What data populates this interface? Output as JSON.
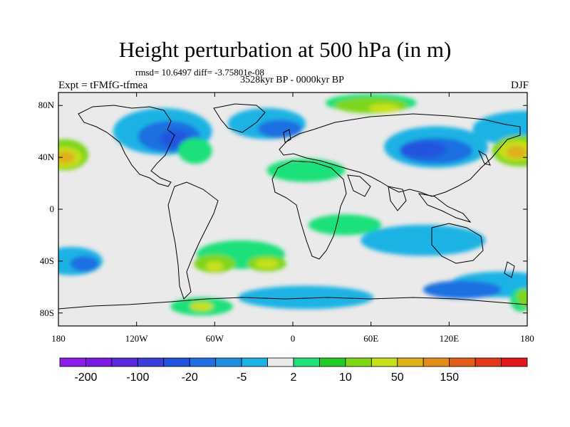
{
  "title": "Height perturbation at 500 hPa (in m)",
  "stats_text": "rmsd= 10.6497 diff= -3.75801e-08",
  "experiment_label": "Expt = tFMfG-tfmea",
  "period_label": "3528kyr BP - 0000kyr BP",
  "season_label": "DJF",
  "chart_data": {
    "type": "heatmap",
    "title": "Height perturbation at 500 hPa (in m)",
    "xlim": [
      -180,
      180
    ],
    "ylim": [
      -90,
      90
    ],
    "x_ticks": [
      {
        "value": -180,
        "label": "180"
      },
      {
        "value": -120,
        "label": "120W"
      },
      {
        "value": -60,
        "label": "60W"
      },
      {
        "value": 0,
        "label": "0"
      },
      {
        "value": 60,
        "label": "60E"
      },
      {
        "value": 120,
        "label": "120E"
      },
      {
        "value": 180,
        "label": "180"
      }
    ],
    "y_ticks": [
      {
        "value": 80,
        "label": "80N"
      },
      {
        "value": 40,
        "label": "40N"
      },
      {
        "value": 0,
        "label": "0"
      },
      {
        "value": -40,
        "label": "40S"
      },
      {
        "value": -80,
        "label": "80S"
      }
    ],
    "colorbar": {
      "colors": [
        "#8c1ee6",
        "#7a1be0",
        "#5a2bd9",
        "#3b3fd8",
        "#2255dd",
        "#1f6fe1",
        "#1f8fe4",
        "#1fb2e4",
        "#eaeaea",
        "#1fe07a",
        "#22cc22",
        "#7ed61a",
        "#c6e01a",
        "#ddb21a",
        "#e38c1a",
        "#e0601a",
        "#e03a1a",
        "#e01a1a"
      ],
      "labels": [
        {
          "index": 1,
          "text": "-200"
        },
        {
          "index": 3,
          "text": "-100"
        },
        {
          "index": 5,
          "text": "-20"
        },
        {
          "index": 7,
          "text": "-5"
        },
        {
          "index": 9,
          "text": "2"
        },
        {
          "index": 11,
          "text": "10"
        },
        {
          "index": 13,
          "text": "50"
        },
        {
          "index": 15,
          "text": "150"
        }
      ]
    },
    "fields": [
      {
        "level": -5,
        "color": "#1fb2e4",
        "lon": 180,
        "lat": 62,
        "rx": 4200,
        "ry": 1400
      },
      {
        "level": -5,
        "color": "#1fb2e4",
        "lon": 110,
        "lat": 48,
        "rx": 4000,
        "ry": 1600
      },
      {
        "level": -5,
        "color": "#1fb2e4",
        "lon": -100,
        "lat": 60,
        "rx": 3800,
        "ry": 1800
      },
      {
        "level": -5,
        "color": "#1fb2e4",
        "lon": -20,
        "lat": 66,
        "rx": 3000,
        "ry": 1200
      },
      {
        "level": -5,
        "color": "#1fb2e4",
        "lon": 100,
        "lat": -24,
        "rx": 4800,
        "ry": 1200
      },
      {
        "level": -5,
        "color": "#1fb2e4",
        "lon": -170,
        "lat": -40,
        "rx": 2400,
        "ry": 1100
      },
      {
        "level": -5,
        "color": "#1fb2e4",
        "lon": 160,
        "lat": -58,
        "rx": 4000,
        "ry": 1000
      },
      {
        "level": -5,
        "color": "#1fb2e4",
        "lon": 10,
        "lat": -68,
        "rx": 5200,
        "ry": 900
      },
      {
        "level": -20,
        "color": "#1f6fe1",
        "lon": 110,
        "lat": 45,
        "rx": 2800,
        "ry": 1000
      },
      {
        "level": -20,
        "color": "#1f6fe1",
        "lon": -95,
        "lat": 56,
        "rx": 2400,
        "ry": 1200
      },
      {
        "level": -20,
        "color": "#1f6fe1",
        "lon": -10,
        "lat": 62,
        "rx": 1700,
        "ry": 700
      },
      {
        "level": -20,
        "color": "#1f6fe1",
        "lon": 130,
        "lat": -62,
        "rx": 3000,
        "ry": 700
      },
      {
        "level": -20,
        "color": "#1f6fe1",
        "lon": -160,
        "lat": -42,
        "rx": 1100,
        "ry": 600
      },
      {
        "level": -40,
        "color": "#2255dd",
        "lon": 100,
        "lat": 46,
        "rx": 1800,
        "ry": 650
      },
      {
        "level": -40,
        "color": "#2255dd",
        "lon": -90,
        "lat": 54,
        "rx": 1200,
        "ry": 700
      },
      {
        "level": 2,
        "color": "#1fe07a",
        "lon": -75,
        "lat": 45,
        "rx": 1300,
        "ry": 1000
      },
      {
        "level": 2,
        "color": "#1fe07a",
        "lon": 10,
        "lat": 30,
        "rx": 3000,
        "ry": 900
      },
      {
        "level": 2,
        "color": "#1fe07a",
        "lon": -40,
        "lat": -35,
        "rx": 3400,
        "ry": 1100
      },
      {
        "level": 2,
        "color": "#1fe07a",
        "lon": 40,
        "lat": -12,
        "rx": 2800,
        "ry": 800
      },
      {
        "level": 2,
        "color": "#1fe07a",
        "lon": 60,
        "lat": 82,
        "rx": 3500,
        "ry": 700
      },
      {
        "level": 2,
        "color": "#1fe07a",
        "lon": -70,
        "lat": -75,
        "rx": 2400,
        "ry": 700
      },
      {
        "level": 2,
        "color": "#1fe07a",
        "lon": 175,
        "lat": -70,
        "rx": 800,
        "ry": 900
      },
      {
        "level": 10,
        "color": "#7ed61a",
        "lon": 175,
        "lat": 45,
        "rx": 2200,
        "ry": 1200
      },
      {
        "level": 10,
        "color": "#7ed61a",
        "lon": -175,
        "lat": 42,
        "rx": 1800,
        "ry": 1200
      },
      {
        "level": 10,
        "color": "#7ed61a",
        "lon": 60,
        "lat": 80,
        "rx": 2800,
        "ry": 600
      },
      {
        "level": 10,
        "color": "#7ed61a",
        "lon": -60,
        "lat": -42,
        "rx": 1600,
        "ry": 700
      },
      {
        "level": 10,
        "color": "#7ed61a",
        "lon": -20,
        "lat": -42,
        "rx": 1500,
        "ry": 600
      },
      {
        "level": 10,
        "color": "#7ed61a",
        "lon": 178,
        "lat": -68,
        "rx": 600,
        "ry": 700
      },
      {
        "level": 20,
        "color": "#c6e01a",
        "lon": -20,
        "lat": -42,
        "rx": 900,
        "ry": 380
      },
      {
        "level": 20,
        "color": "#c6e01a",
        "lon": -60,
        "lat": -44,
        "rx": 700,
        "ry": 400
      },
      {
        "level": 20,
        "color": "#c6e01a",
        "lon": 172,
        "lat": 45,
        "rx": 1400,
        "ry": 800
      },
      {
        "level": 20,
        "color": "#c6e01a",
        "lon": -175,
        "lat": 40,
        "rx": 1300,
        "ry": 800
      },
      {
        "level": 20,
        "color": "#c6e01a",
        "lon": 70,
        "lat": 78,
        "rx": 1200,
        "ry": 350
      },
      {
        "level": 20,
        "color": "#c6e01a",
        "lon": -70,
        "lat": -75,
        "rx": 900,
        "ry": 350
      },
      {
        "level": 50,
        "color": "#ddb21a",
        "lon": 172,
        "lat": 44,
        "rx": 800,
        "ry": 500
      },
      {
        "level": 50,
        "color": "#ddb21a",
        "lon": -175,
        "lat": 40,
        "rx": 800,
        "ry": 500
      }
    ]
  }
}
